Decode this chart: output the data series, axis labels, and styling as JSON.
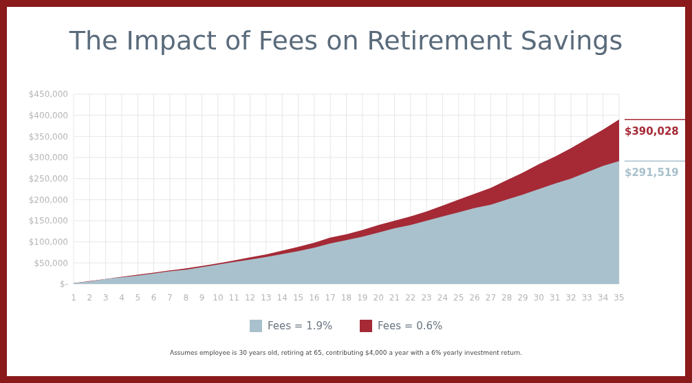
{
  "chart_data": {
    "type": "area",
    "title": "The Impact of Fees on Retirement Savings",
    "x": [
      1,
      2,
      3,
      4,
      5,
      6,
      7,
      8,
      9,
      10,
      11,
      12,
      13,
      14,
      15,
      16,
      17,
      18,
      19,
      20,
      21,
      22,
      23,
      24,
      25,
      26,
      27,
      28,
      29,
      30,
      31,
      32,
      33,
      34,
      35
    ],
    "xlim": [
      1,
      35
    ],
    "xticks": [
      1,
      2,
      3,
      4,
      5,
      6,
      7,
      8,
      9,
      10,
      11,
      12,
      13,
      14,
      15,
      16,
      17,
      18,
      19,
      20,
      21,
      22,
      23,
      24,
      25,
      26,
      27,
      28,
      29,
      30,
      31,
      32,
      33,
      34,
      35
    ],
    "ylim": [
      0,
      450000
    ],
    "yticks": [
      {
        "value": 0,
        "label": "$-"
      },
      {
        "value": 50000,
        "label": "$50,000"
      },
      {
        "value": 100000,
        "label": "$100,000"
      },
      {
        "value": 150000,
        "label": "$150,000"
      },
      {
        "value": 200000,
        "label": "$200,000"
      },
      {
        "value": 250000,
        "label": "$250,000"
      },
      {
        "value": 300000,
        "label": "$300,000"
      },
      {
        "value": 350000,
        "label": "$350,000"
      },
      {
        "value": 400000,
        "label": "$400,000"
      },
      {
        "value": 450000,
        "label": "$450,000"
      }
    ],
    "series": [
      {
        "name": "Fees = 1.9%",
        "color": "#a9c1cc",
        "values": [
          2000,
          6000,
          12000,
          16000,
          20000,
          25000,
          30000,
          34000,
          40000,
          46000,
          52000,
          58000,
          64000,
          71000,
          78000,
          86000,
          96000,
          104000,
          112000,
          122000,
          132000,
          140000,
          150000,
          160000,
          170000,
          180000,
          188000,
          200000,
          212000,
          225000,
          238000,
          250000,
          265000,
          280000,
          291519
        ]
      },
      {
        "name": "Fees = 0.6%",
        "color": "#a52a36",
        "values": [
          2000,
          7000,
          12000,
          17000,
          22000,
          27000,
          32000,
          37000,
          43000,
          49000,
          56000,
          63000,
          70000,
          79000,
          88000,
          98000,
          110000,
          118000,
          128000,
          140000,
          150000,
          160000,
          172000,
          186000,
          200000,
          214000,
          228000,
          246000,
          264000,
          284000,
          302000,
          322000,
          344000,
          366000,
          390028
        ]
      }
    ],
    "annotations": [
      {
        "text": "$390,028",
        "x": 35,
        "y": 390028
      },
      {
        "text": "$291,519",
        "x": 35,
        "y": 291519
      },
      "Assumes employee is 30 years old, retiring at 65, contributing $4,000 a year with a 6% yearly investment return."
    ],
    "grid": true,
    "legend": "bottom"
  }
}
